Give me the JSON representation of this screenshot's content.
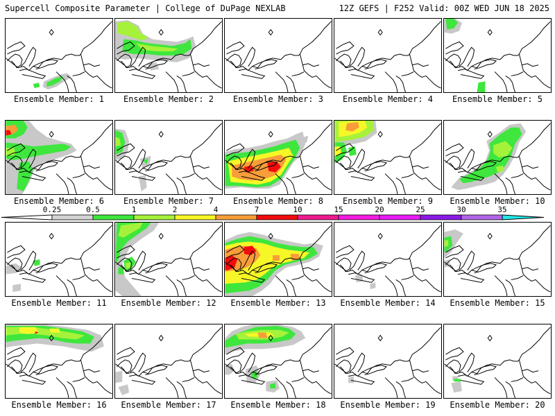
{
  "header": {
    "title_left": "Supercell Composite Parameter | College of DuPage NEXLAB",
    "title_right": "12Z GEFS | F252 Valid: 00Z WED JUN 18 2025"
  },
  "legend": {
    "thresholds": [
      "0.25",
      "0.5",
      "1",
      "2",
      "4",
      "7",
      "10",
      "15",
      "20",
      "25",
      "30",
      "35"
    ],
    "colors": [
      "#d3d3d3",
      "#3ee63e",
      "#a6f23a",
      "#f7f727",
      "#f79d3a",
      "#f20c0c",
      "#ee1a8e",
      "#f51ae0",
      "#e81af5",
      "#8a1ae6",
      "#b266e6",
      "#22e6e6"
    ]
  },
  "colors": {
    "light_gray": "#c8c8c8",
    "green": "#3ee63e",
    "lime": "#a6f23a",
    "yellow": "#f7f727",
    "orange": "#f79d3a",
    "red": "#f20c0c"
  },
  "members": [
    {
      "label": "Ensemble Member: 1"
    },
    {
      "label": "Ensemble Member: 2"
    },
    {
      "label": "Ensemble Member: 3"
    },
    {
      "label": "Ensemble Member: 4"
    },
    {
      "label": "Ensemble Member: 5"
    },
    {
      "label": "Ensemble Member: 6"
    },
    {
      "label": "Ensemble Member: 7"
    },
    {
      "label": "Ensemble Member: 8"
    },
    {
      "label": "Ensemble Member: 9"
    },
    {
      "label": "Ensemble Member: 10"
    },
    {
      "label": "Ensemble Member: 11"
    },
    {
      "label": "Ensemble Member: 12"
    },
    {
      "label": "Ensemble Member: 13"
    },
    {
      "label": "Ensemble Member: 14"
    },
    {
      "label": "Ensemble Member: 15"
    },
    {
      "label": "Ensemble Member: 16"
    },
    {
      "label": "Ensemble Member: 17"
    },
    {
      "label": "Ensemble Member: 18"
    },
    {
      "label": "Ensemble Member: 19"
    },
    {
      "label": "Ensemble Member: 20"
    }
  ]
}
